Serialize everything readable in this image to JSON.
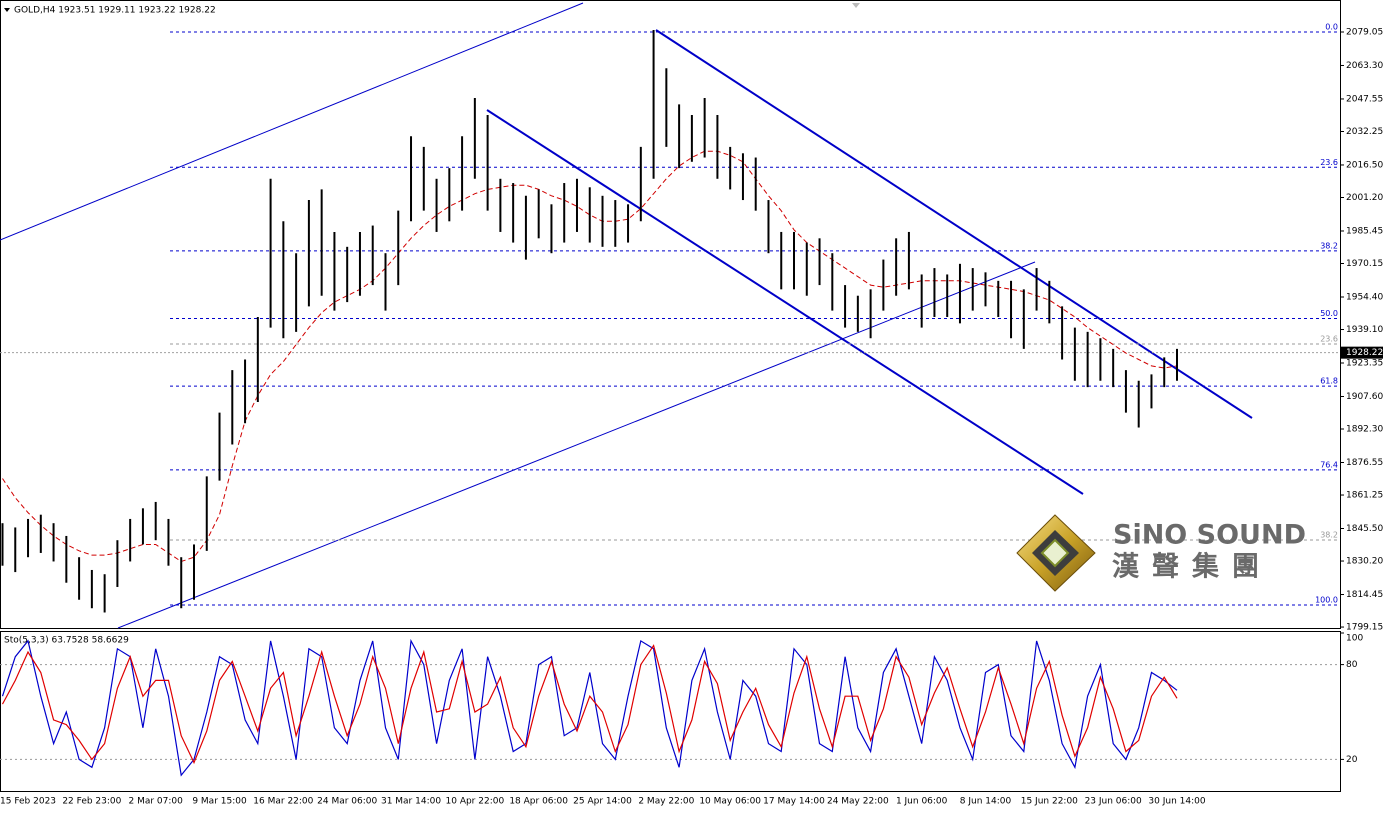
{
  "chart_data": [
    {
      "type": "range_bar",
      "header": "GOLD,H4  1923.51 1929.11 1923.22 1928.22",
      "categories": [
        null,
        null,
        "15 Feb 2023",
        null,
        null,
        null,
        null,
        "22 Feb 23:00",
        null,
        null,
        null,
        null,
        "2 Mar 07:00",
        null,
        null,
        null,
        null,
        "9 Mar 15:00",
        null,
        null,
        null,
        null,
        "16 Mar 22:00",
        null,
        null,
        null,
        null,
        "24 Mar 06:00",
        null,
        null,
        null,
        null,
        "31 Mar 14:00",
        null,
        null,
        null,
        null,
        "10 Apr 22:00",
        null,
        null,
        null,
        null,
        "18 Apr 06:00",
        null,
        null,
        null,
        null,
        "25 Apr 14:00",
        null,
        null,
        null,
        null,
        "2 May 22:00",
        null,
        null,
        null,
        null,
        "10 May 06:00",
        null,
        null,
        null,
        null,
        "17 May 14:00",
        null,
        null,
        null,
        null,
        "24 May 22:00",
        null,
        null,
        null,
        null,
        "1 Jun 06:00",
        null,
        null,
        null,
        null,
        "8 Jun 14:00",
        null,
        null,
        null,
        null,
        "15 Jun 22:00",
        null,
        null,
        null,
        null,
        "23 Jun 06:00",
        null,
        null,
        null,
        null,
        "30 Jun 14:00"
      ],
      "bars": {
        "color": "#000000",
        "high": [
          1848,
          1846,
          1850,
          1852,
          1848,
          1842,
          1832,
          1826,
          1824,
          1840,
          1850,
          1855,
          1858,
          1850,
          1832,
          1838,
          1870,
          1900,
          1920,
          1925,
          1945,
          2010,
          1990,
          1975,
          2000,
          2005,
          1985,
          1978,
          1985,
          1988,
          1975,
          1995,
          2030,
          2025,
          2010,
          2015,
          2030,
          2048,
          2040,
          2010,
          2008,
          2002,
          2005,
          1998,
          2008,
          2010,
          2006,
          2002,
          2000,
          1998,
          2025,
          2080,
          2062,
          2045,
          2040,
          2048,
          2040,
          2025,
          2022,
          2020,
          2000,
          1985,
          1985,
          1980,
          1982,
          1975,
          1960,
          1955,
          1958,
          1972,
          1982,
          1985,
          1965,
          1968,
          1965,
          1970,
          1968,
          1966,
          1962,
          1962,
          1958,
          1968,
          1962,
          1950,
          1940,
          1938,
          1935,
          1930,
          1920,
          1915,
          1918,
          1926,
          1930
        ],
        "low": [
          1828,
          1825,
          1832,
          1834,
          1830,
          1820,
          1812,
          1808,
          1806,
          1818,
          1830,
          1838,
          1840,
          1828,
          1808,
          1812,
          1835,
          1868,
          1885,
          1895,
          1905,
          1940,
          1935,
          1938,
          1950,
          1955,
          1948,
          1952,
          1955,
          1960,
          1948,
          1960,
          1990,
          1995,
          1985,
          1990,
          1995,
          2010,
          1995,
          1985,
          1980,
          1972,
          1982,
          1975,
          1980,
          1985,
          1980,
          1978,
          1978,
          1980,
          1990,
          2010,
          2025,
          2015,
          2018,
          2020,
          2010,
          2005,
          2000,
          1995,
          1975,
          1958,
          1958,
          1955,
          1960,
          1948,
          1940,
          1938,
          1935,
          1948,
          1955,
          1958,
          1940,
          1945,
          1945,
          1942,
          1948,
          1950,
          1945,
          1935,
          1930,
          1948,
          1942,
          1925,
          1915,
          1912,
          1915,
          1912,
          1900,
          1893,
          1902,
          1912,
          1915
        ]
      },
      "moving_average": {
        "color": "#d00000",
        "values": [
          1869,
          1860,
          1853,
          1847,
          1842,
          1838,
          1835,
          1833,
          1833,
          1834,
          1836,
          1838,
          1838,
          1834,
          1830,
          1832,
          1840,
          1852,
          1875,
          1896,
          1908,
          1918,
          1924,
          1932,
          1940,
          1947,
          1952,
          1955,
          1958,
          1962,
          1968,
          1975,
          1982,
          1988,
          1993,
          1997,
          2000,
          2003,
          2005,
          2006,
          2007,
          2007,
          2005,
          2002,
          2000,
          1997,
          1993,
          1990,
          1990,
          1991,
          1996,
          2003,
          2010,
          2016,
          2020,
          2023,
          2023,
          2021,
          2018,
          2010,
          2002,
          1995,
          1986,
          1980,
          1976,
          1972,
          1968,
          1964,
          1960,
          1959,
          1960,
          1961,
          1962,
          1962,
          1962,
          1962,
          1961,
          1960,
          1959,
          1958,
          1957,
          1955,
          1953,
          1949,
          1945,
          1940,
          1936,
          1932,
          1928,
          1925,
          1922,
          1921,
          1922
        ]
      },
      "ylim": [
        1798.7,
        2094.1
      ],
      "yticks": [
        2079.05,
        {
          "value": 2063.3,
          "label": "2063.30"
        },
        2047.55,
        2032.25,
        {
          "value": 2016.5,
          "label": "2016.50"
        },
        {
          "value": 2001.2,
          "label": "2001.20"
        },
        1985.45,
        1970.15,
        {
          "value": 1954.4,
          "label": "1954.40"
        },
        {
          "value": 1939.1,
          "label": "1939.10"
        },
        1923.35,
        {
          "value": 1907.6,
          "label": "1907.60"
        },
        {
          "value": 1892.3,
          "label": "1892.30"
        },
        1876.55,
        1861.25,
        {
          "value": 1845.5,
          "label": "1845.50"
        },
        {
          "value": 1830.2,
          "label": "1830.20"
        },
        1814.45,
        1799.15
      ],
      "last_price": 1928.22,
      "fib_levels": [
        {
          "label": "0.0",
          "value": 2079.05
        },
        {
          "label": "23.6",
          "value": 2015.4
        },
        {
          "label": "38.2",
          "value": 1976.1
        },
        {
          "label": "50.0",
          "value": 1944.3
        },
        {
          "label": "61.8",
          "value": 1912.5
        },
        {
          "label": "76.4",
          "value": 1873.1
        },
        {
          "label": "100.0",
          "value": 1809.5
        }
      ],
      "fib_color": "#0000cc",
      "secondary_fib_levels": [
        {
          "label": "23.6",
          "value": 1932.3
        },
        {
          "label": "38.2",
          "value": 1840.1
        }
      ],
      "secondary_fib_color": "#9a9a9a",
      "watermark": {
        "name": "SiNO SOUND",
        "chinese": "漢聲集團"
      }
    },
    {
      "type": "line",
      "header": "Sto(5,3,3) 63.7528 58.6629",
      "series": [
        {
          "color": "#0000cc",
          "values": [
            60,
            85,
            95,
            60,
            30,
            50,
            20,
            15,
            40,
            90,
            85,
            40,
            90,
            60,
            10,
            20,
            50,
            85,
            80,
            45,
            30,
            95,
            60,
            20,
            90,
            85,
            40,
            30,
            70,
            95,
            40,
            20,
            95,
            80,
            30,
            70,
            90,
            20,
            85,
            60,
            25,
            30,
            80,
            85,
            35,
            40,
            75,
            30,
            20,
            60,
            95,
            90,
            40,
            15,
            70,
            90,
            50,
            20,
            70,
            60,
            30,
            25,
            90,
            80,
            30,
            25,
            85,
            40,
            25,
            75,
            90,
            60,
            30,
            85,
            70,
            40,
            20,
            75,
            80,
            35,
            25,
            95,
            70,
            30,
            15,
            60,
            80,
            30,
            20,
            40,
            75,
            70,
            63.7528
          ]
        },
        {
          "color": "#e00000",
          "values": [
            55,
            70,
            88,
            75,
            45,
            42,
            32,
            20,
            30,
            65,
            85,
            60,
            70,
            70,
            35,
            18,
            38,
            70,
            82,
            60,
            38,
            65,
            75,
            35,
            60,
            88,
            60,
            35,
            55,
            85,
            65,
            30,
            65,
            88,
            50,
            52,
            82,
            50,
            55,
            72,
            40,
            28,
            60,
            82,
            55,
            38,
            60,
            50,
            25,
            42,
            80,
            92,
            62,
            25,
            45,
            82,
            68,
            32,
            50,
            65,
            42,
            28,
            62,
            85,
            52,
            28,
            60,
            60,
            32,
            52,
            85,
            72,
            42,
            62,
            78,
            52,
            28,
            50,
            78,
            55,
            30,
            65,
            82,
            48,
            22,
            40,
            72,
            52,
            25,
            32,
            60,
            72,
            58.6629
          ]
        }
      ],
      "ylim": [
        0,
        100
      ],
      "yticks": [
        100,
        80,
        20
      ],
      "level_lines": true
    }
  ]
}
